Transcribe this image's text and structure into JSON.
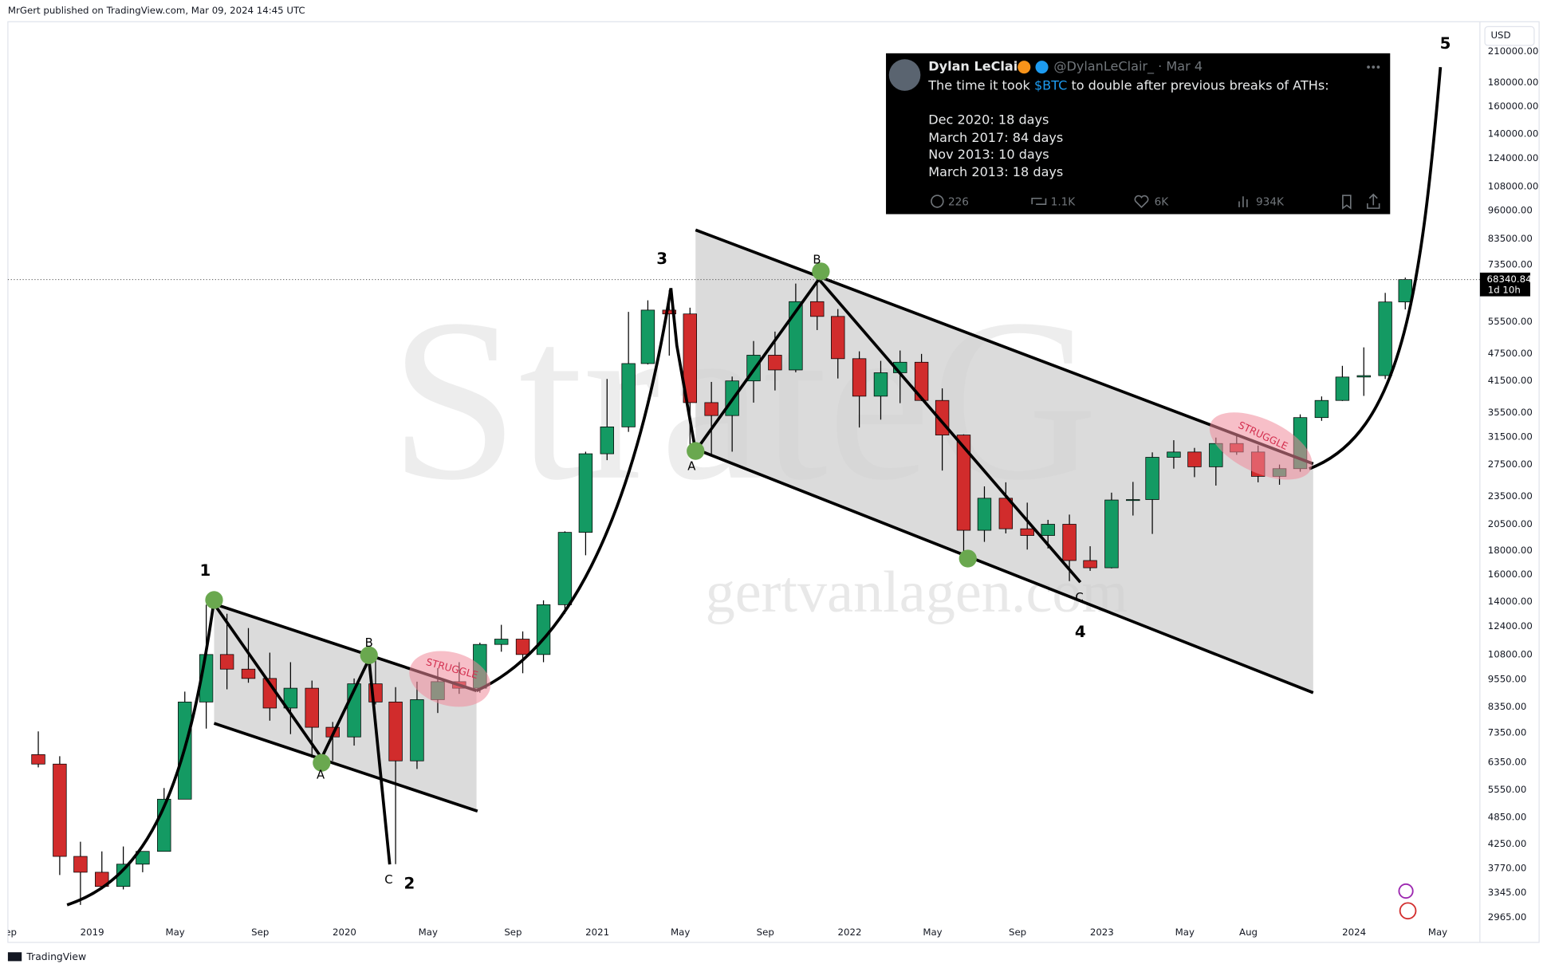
{
  "header": "MrGert published on TradingView.com, Mar 09, 2024 14:45 UTC",
  "footer": "TradingView",
  "watermarks": [
    "StrateG",
    "gertvanlagen.com"
  ],
  "tweet": {
    "name": "Dylan LeClair",
    "handle": "@DylanLeClair_ · Mar 4",
    "text_before": "The time it took ",
    "cashtag": "$BTC",
    "text_after": " to double after previous breaks of ATHs:",
    "lines": [
      "Dec 2020: 18 days",
      "March 2017: 84 days",
      "Nov 2013: 10 days",
      "March 2013: 18 days"
    ],
    "stats": [
      "226",
      "1.1K",
      "6K",
      "934K"
    ]
  },
  "chart_data": {
    "type": "candlestick",
    "currency": "USD",
    "log_scale": true,
    "grid": false,
    "up_color": "#149a63",
    "down_color": "#d12c2c",
    "x": [
      "2018-10",
      "2018-11",
      "2018-12",
      "2019-01",
      "2019-02",
      "2019-03",
      "2019-04",
      "2019-05",
      "2019-06",
      "2019-07",
      "2019-08",
      "2019-09",
      "2019-10",
      "2019-11",
      "2019-12",
      "2020-01",
      "2020-02",
      "2020-03",
      "2020-04",
      "2020-05",
      "2020-06",
      "2020-07",
      "2020-08",
      "2020-09",
      "2020-10",
      "2020-11",
      "2020-12",
      "2021-01",
      "2021-02",
      "2021-03",
      "2021-04",
      "2021-05",
      "2021-06",
      "2021-07",
      "2021-08",
      "2021-09",
      "2021-10",
      "2021-11",
      "2021-12",
      "2022-01",
      "2022-02",
      "2022-03",
      "2022-04",
      "2022-05",
      "2022-06",
      "2022-07",
      "2022-08",
      "2022-09",
      "2022-10",
      "2022-11",
      "2022-12",
      "2023-01",
      "2023-02",
      "2023-03",
      "2023-04",
      "2023-05",
      "2023-06",
      "2023-07",
      "2023-08",
      "2023-09",
      "2023-10",
      "2023-11",
      "2023-12",
      "2024-01",
      "2024-02",
      "2024-03"
    ],
    "open": [
      6600,
      6300,
      4000,
      3700,
      3450,
      3850,
      4100,
      5300,
      8550,
      10800,
      10050,
      9600,
      8300,
      9150,
      7550,
      7200,
      9350,
      8550,
      6400,
      8650,
      9450,
      9150,
      11350,
      11650,
      10800,
      13800,
      19700,
      29000,
      33100,
      45200,
      58800,
      57700,
      37300,
      35000,
      41500,
      47100,
      43800,
      61300,
      57000,
      46300,
      38500,
      43200,
      45500,
      37700,
      31800,
      19900,
      23300,
      20050,
      19400,
      20500,
      17150,
      16550,
      23100,
      23150,
      28500,
      29250,
      27200,
      30500,
      29250,
      25950,
      26950,
      34650,
      37700,
      42300,
      42600,
      61200
    ],
    "high": [
      7400,
      6550,
      4300,
      4100,
      4200,
      4100,
      5600,
      9000,
      13800,
      13200,
      12300,
      10900,
      10400,
      9500,
      7750,
      9600,
      10500,
      9200,
      9450,
      10100,
      10400,
      11450,
      12500,
      12100,
      14100,
      19800,
      29300,
      41900,
      58300,
      61700,
      64900,
      59500,
      41300,
      42400,
      50500,
      52900,
      67000,
      69000,
      59100,
      48000,
      45800,
      48200,
      47400,
      40000,
      31900,
      24700,
      25200,
      22800,
      20950,
      21500,
      18400,
      23950,
      25250,
      29200,
      31000,
      29850,
      31400,
      31800,
      30200,
      27500,
      35200,
      38450,
      44700,
      48950,
      64000,
      69000
    ],
    "low": [
      6200,
      3650,
      3150,
      3400,
      3400,
      3700,
      4100,
      5300,
      7500,
      9100,
      9400,
      7800,
      7300,
      6500,
      6400,
      6900,
      8450,
      3850,
      6150,
      8100,
      8900,
      8950,
      10950,
      9850,
      10400,
      13200,
      17600,
      28100,
      32300,
      45000,
      47000,
      30000,
      28800,
      29300,
      37300,
      39600,
      43300,
      53300,
      42000,
      33000,
      34300,
      37200,
      37600,
      26700,
      17600,
      18800,
      19600,
      18100,
      18200,
      15500,
      16300,
      16500,
      21400,
      19550,
      26950,
      25850,
      24800,
      28850,
      25200,
      24900,
      26550,
      34100,
      37600,
      38550,
      41900,
      59000
    ],
    "close": [
      6300,
      4000,
      3700,
      3450,
      3850,
      4100,
      5300,
      8550,
      10800,
      10050,
      9600,
      8300,
      9150,
      7550,
      7200,
      9350,
      8550,
      6400,
      8650,
      9450,
      9150,
      11350,
      11650,
      10800,
      13800,
      19700,
      29000,
      33100,
      45200,
      58800,
      57700,
      37300,
      35000,
      41500,
      47100,
      43800,
      61300,
      57000,
      46300,
      38500,
      43200,
      45500,
      37700,
      31800,
      19900,
      23300,
      20050,
      19400,
      20500,
      17150,
      16550,
      23100,
      23150,
      28500,
      29250,
      27200,
      30500,
      29250,
      25950,
      26950,
      34650,
      37700,
      42300,
      42600,
      61200,
      68340.84
    ],
    "xlim": [
      "2018-09",
      "2024-07"
    ],
    "xticks": [
      {
        "value": "2018-09",
        "label": "Sep"
      },
      {
        "value": "2019-01",
        "label": "2019"
      },
      {
        "value": "2019-05",
        "label": "May"
      },
      {
        "value": "2019-09",
        "label": "Sep"
      },
      {
        "value": "2020-01",
        "label": "2020"
      },
      {
        "value": "2020-05",
        "label": "May"
      },
      {
        "value": "2020-09",
        "label": "Sep"
      },
      {
        "value": "2021-01",
        "label": "2021"
      },
      {
        "value": "2021-05",
        "label": "May"
      },
      {
        "value": "2021-09",
        "label": "Sep"
      },
      {
        "value": "2022-01",
        "label": "2022"
      },
      {
        "value": "2022-05",
        "label": "May"
      },
      {
        "value": "2022-09",
        "label": "Sep"
      },
      {
        "value": "2023-01",
        "label": "2023"
      },
      {
        "value": "2023-05",
        "label": "May"
      },
      {
        "value": "2023-08",
        "label": "Aug"
      },
      {
        "value": "2024-01",
        "label": "2024"
      },
      {
        "value": "2024-05",
        "label": "May"
      }
    ],
    "ylim": [
      2620,
      243000
    ],
    "yticks": [
      {
        "value": 210000,
        "label": "210000.00"
      },
      {
        "value": 180000,
        "label": "180000.00"
      },
      {
        "value": 160000,
        "label": "160000.00"
      },
      {
        "value": 140000,
        "label": "140000.00"
      },
      {
        "value": 124000,
        "label": "124000.00"
      },
      {
        "value": 108000,
        "label": "108000.00"
      },
      {
        "value": 96000,
        "label": "96000.00"
      },
      {
        "value": 83500,
        "label": "83500.00"
      },
      {
        "value": 73500,
        "label": "73500.00"
      },
      {
        "value": 55500,
        "label": "55500.00"
      },
      {
        "value": 47500,
        "label": "47500.00"
      },
      {
        "value": 41500,
        "label": "41500.00"
      },
      {
        "value": 35500,
        "label": "35500.00"
      },
      {
        "value": 31500,
        "label": "31500.00"
      },
      {
        "value": 27500,
        "label": "27500.00"
      },
      {
        "value": 23500,
        "label": "23500.00"
      },
      {
        "value": 20500,
        "label": "20500.00"
      },
      {
        "value": 18000,
        "label": "18000.00"
      },
      {
        "value": 16000,
        "label": "16000.00"
      },
      {
        "value": 14000,
        "label": "14000.00"
      },
      {
        "value": 12400,
        "label": "12400.00"
      },
      {
        "value": 10800,
        "label": "10800.00"
      },
      {
        "value": 9550,
        "label": "9550.00"
      },
      {
        "value": 8350,
        "label": "8350.00"
      },
      {
        "value": 7350,
        "label": "7350.00"
      },
      {
        "value": 6350,
        "label": "6350.00"
      },
      {
        "value": 5550,
        "label": "5550.00"
      },
      {
        "value": 4850,
        "label": "4850.00"
      },
      {
        "value": 4250,
        "label": "4250.00"
      },
      {
        "value": 3770,
        "label": "3770.00"
      },
      {
        "value": 3345,
        "label": "3345.00"
      },
      {
        "value": 2965,
        "label": "2965.00"
      }
    ],
    "last_price": 68340.84,
    "countdown": "1d 10h",
    "annotations": {
      "waves": [
        "1",
        "2",
        "3",
        "4",
        "5"
      ],
      "corrections": [
        "A",
        "B",
        "C",
        "A",
        "B",
        "C"
      ],
      "struggle": [
        "STRUGGLE",
        "STRUGGLE"
      ]
    }
  }
}
